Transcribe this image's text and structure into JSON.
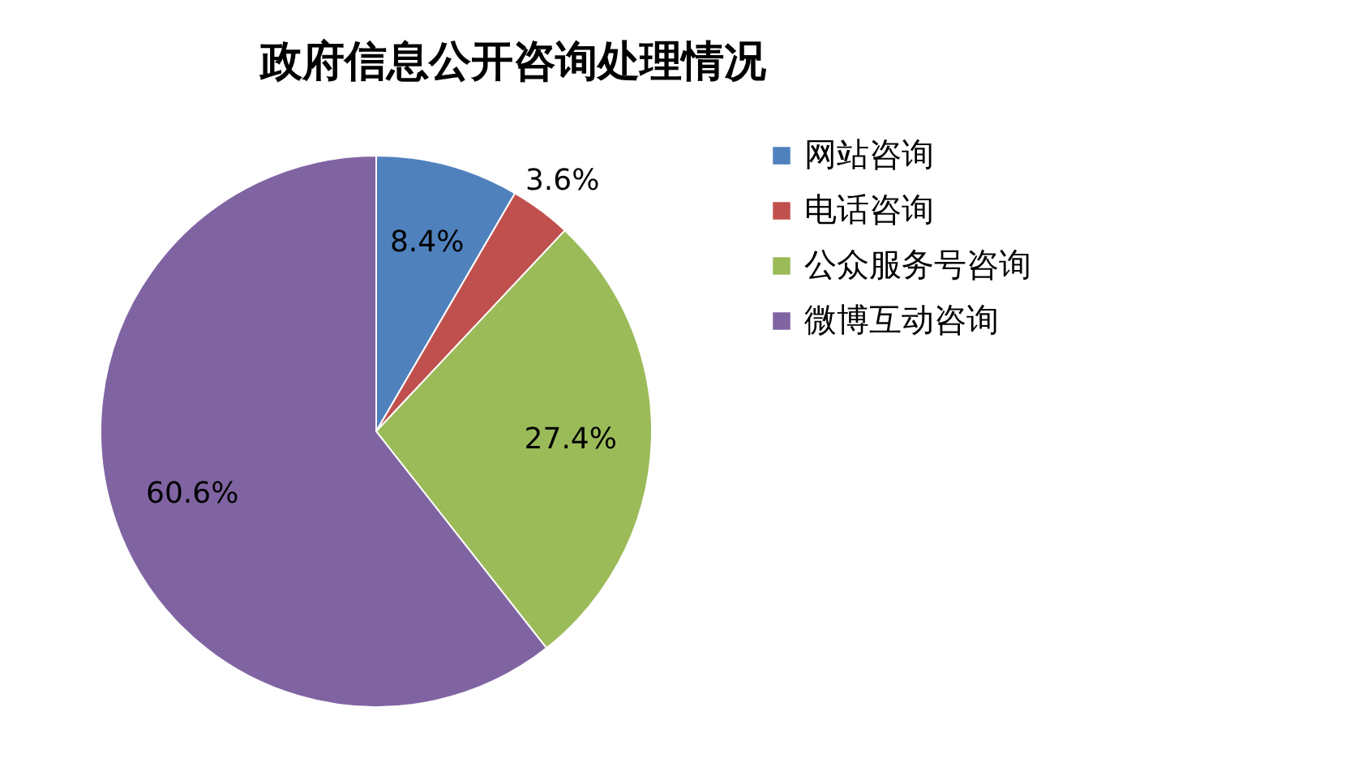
{
  "chart_data": {
    "type": "pie",
    "title": "政府信息公开咨询处理情况",
    "categories": [
      "网站咨询",
      "电话咨询",
      "公众服务号咨询",
      "微博互动咨询"
    ],
    "values": [
      8.4,
      3.6,
      27.4,
      60.6
    ],
    "colors": [
      "#4f81bd",
      "#c0504d",
      "#9bbb59",
      "#8064a2"
    ],
    "value_labels": [
      "8.4%",
      "3.6%",
      "27.4%",
      "60.6%"
    ],
    "legend": "right"
  }
}
